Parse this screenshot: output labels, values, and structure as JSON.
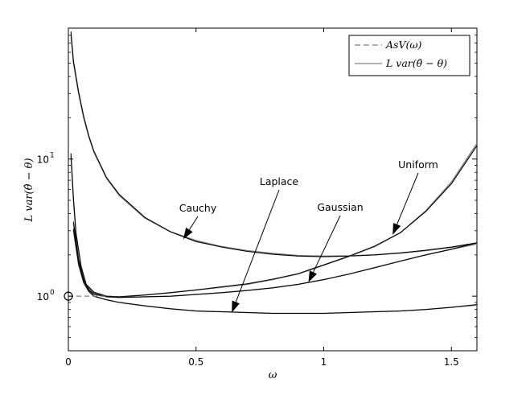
{
  "chart_data": {
    "type": "line",
    "title": "",
    "xlabel": "ω",
    "ylabel": "L var(θ̂ − θ)",
    "xlim": [
      0,
      1.6
    ],
    "ylim": [
      0.4,
      90
    ],
    "yscale": "log",
    "x_ticks": [
      {
        "value": 0,
        "label": "0"
      },
      {
        "value": 0.5,
        "label": "0.5"
      },
      {
        "value": 1,
        "label": "1"
      },
      {
        "value": 1.5,
        "label": "1.5"
      }
    ],
    "y_ticks": [
      {
        "value": 1,
        "base": "10",
        "exp": "0"
      },
      {
        "value": 10,
        "base": "10",
        "exp": "1"
      }
    ],
    "grid": false,
    "legend": {
      "position": "top-right",
      "entries": [
        {
          "label": "AsV(ω)",
          "style": "dashed",
          "color": "#808080"
        },
        {
          "label": "L var(θ̂ − θ)",
          "style": "solid",
          "color": "#808080"
        }
      ]
    },
    "series": [
      {
        "name": "Cauchy",
        "kind": "AsV",
        "color": "#808080",
        "x": [
          0.01,
          0.02,
          0.04,
          0.06,
          0.08,
          0.1,
          0.15,
          0.2,
          0.3,
          0.4,
          0.5,
          0.6,
          0.7,
          0.8,
          0.9,
          1.0,
          1.1,
          1.2,
          1.3,
          1.4,
          1.5,
          1.6
        ],
        "y": [
          80,
          50,
          30,
          20,
          14.5,
          11.2,
          7.2,
          5.4,
          3.7,
          2.95,
          2.55,
          2.3,
          2.15,
          2.05,
          1.98,
          1.96,
          1.97,
          2.0,
          2.06,
          2.15,
          2.27,
          2.42
        ]
      },
      {
        "name": "Cauchy",
        "kind": "empirical",
        "color": "#000000",
        "x": [
          0.01,
          0.02,
          0.04,
          0.06,
          0.08,
          0.1,
          0.15,
          0.2,
          0.3,
          0.4,
          0.5,
          0.6,
          0.7,
          0.8,
          0.9,
          1.0,
          1.1,
          1.2,
          1.3,
          1.4,
          1.5,
          1.6
        ],
        "y": [
          85,
          52,
          31,
          20.5,
          14.8,
          11.4,
          7.3,
          5.5,
          3.75,
          2.95,
          2.5,
          2.28,
          2.12,
          2.02,
          1.96,
          1.94,
          1.96,
          2.0,
          2.07,
          2.16,
          2.28,
          2.45
        ]
      },
      {
        "name": "Uniform",
        "kind": "AsV",
        "color": "#808080",
        "x": [
          0.01,
          0.02,
          0.03,
          0.05,
          0.07,
          0.1,
          0.15,
          0.2,
          0.3,
          0.4,
          0.5,
          0.6,
          0.7,
          0.8,
          0.9,
          1.0,
          1.1,
          1.2,
          1.3,
          1.4,
          1.5,
          1.6
        ],
        "y": [
          10.5,
          5,
          2.8,
          1.6,
          1.2,
          1.06,
          1.0,
          0.99,
          1.02,
          1.06,
          1.11,
          1.16,
          1.22,
          1.32,
          1.45,
          1.68,
          1.95,
          2.3,
          2.9,
          4.2,
          6.8,
          13
        ]
      },
      {
        "name": "Uniform",
        "kind": "empirical",
        "color": "#000000",
        "x": [
          0.01,
          0.02,
          0.03,
          0.05,
          0.07,
          0.1,
          0.15,
          0.2,
          0.3,
          0.4,
          0.5,
          0.6,
          0.7,
          0.8,
          0.9,
          1.0,
          1.1,
          1.2,
          1.3,
          1.4,
          1.5,
          1.6
        ],
        "y": [
          11,
          5.2,
          2.9,
          1.65,
          1.22,
          1.07,
          1.0,
          0.99,
          1.02,
          1.06,
          1.11,
          1.17,
          1.23,
          1.33,
          1.46,
          1.69,
          1.96,
          2.32,
          2.9,
          4.15,
          6.6,
          12.5
        ]
      },
      {
        "name": "Gaussian",
        "kind": "AsV",
        "color": "#808080",
        "x": [
          0.02,
          0.04,
          0.06,
          0.08,
          0.1,
          0.15,
          0.2,
          0.3,
          0.4,
          0.5,
          0.6,
          0.7,
          0.8,
          0.9,
          1.0,
          1.1,
          1.2,
          1.3,
          1.4,
          1.5,
          1.6
        ],
        "y": [
          3.4,
          1.8,
          1.3,
          1.1,
          1.03,
          0.99,
          0.98,
          0.99,
          1.0,
          1.03,
          1.06,
          1.1,
          1.15,
          1.22,
          1.32,
          1.45,
          1.62,
          1.8,
          2.0,
          2.2,
          2.4
        ]
      },
      {
        "name": "Gaussian",
        "kind": "empirical",
        "color": "#000000",
        "x": [
          0.02,
          0.04,
          0.06,
          0.08,
          0.1,
          0.15,
          0.2,
          0.3,
          0.4,
          0.5,
          0.6,
          0.7,
          0.8,
          0.9,
          1.0,
          1.1,
          1.2,
          1.3,
          1.4,
          1.5,
          1.6
        ],
        "y": [
          3.5,
          1.85,
          1.32,
          1.12,
          1.04,
          0.99,
          0.98,
          0.99,
          1.0,
          1.03,
          1.06,
          1.1,
          1.15,
          1.22,
          1.32,
          1.45,
          1.61,
          1.8,
          2.0,
          2.2,
          2.45
        ]
      },
      {
        "name": "Laplace",
        "kind": "AsV",
        "color": "#808080",
        "x": [
          0.02,
          0.04,
          0.06,
          0.08,
          0.1,
          0.15,
          0.2,
          0.3,
          0.4,
          0.5,
          0.6,
          0.7,
          0.8,
          0.9,
          1.0,
          1.1,
          1.2,
          1.3,
          1.4,
          1.5,
          1.6
        ],
        "y": [
          3.0,
          1.7,
          1.25,
          1.08,
          1.0,
          0.94,
          0.9,
          0.85,
          0.81,
          0.78,
          0.77,
          0.76,
          0.75,
          0.75,
          0.75,
          0.76,
          0.77,
          0.78,
          0.8,
          0.83,
          0.86
        ]
      },
      {
        "name": "Laplace",
        "kind": "empirical",
        "color": "#000000",
        "x": [
          0.02,
          0.04,
          0.06,
          0.08,
          0.1,
          0.15,
          0.2,
          0.3,
          0.4,
          0.5,
          0.6,
          0.7,
          0.8,
          0.9,
          1.0,
          1.1,
          1.2,
          1.3,
          1.4,
          1.5,
          1.6
        ],
        "y": [
          3.1,
          1.72,
          1.26,
          1.09,
          1.0,
          0.94,
          0.9,
          0.85,
          0.81,
          0.78,
          0.77,
          0.76,
          0.75,
          0.75,
          0.75,
          0.76,
          0.77,
          0.78,
          0.8,
          0.83,
          0.87
        ]
      }
    ],
    "reference": {
      "x": 0,
      "y": 1,
      "asv_dashed_to_x": 0.15
    },
    "annotations": [
      {
        "text": "Cauchy",
        "point_x": 0.45,
        "point_y": 2.6
      },
      {
        "text": "Laplace",
        "point_x": 0.64,
        "point_y": 0.76
      },
      {
        "text": "Gaussian",
        "point_x": 0.94,
        "point_y": 1.26
      },
      {
        "text": "Uniform",
        "point_x": 1.27,
        "point_y": 2.8
      }
    ]
  }
}
